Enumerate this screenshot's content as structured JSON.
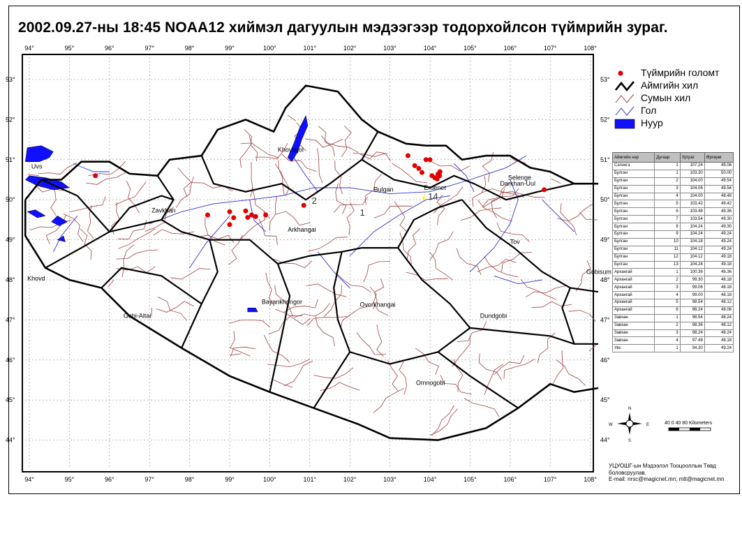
{
  "title": "2002.09.27-ны 18:45   NOAA12 хиймэл дагуулын мэдээгээр тодорхойлсон түймрийн зураг.",
  "lon_ticks": [
    "94°",
    "95°",
    "96°",
    "97°",
    "98°",
    "99°",
    "100°",
    "101°",
    "102°",
    "103°",
    "104°",
    "105°",
    "106°",
    "107°",
    "108°"
  ],
  "lat_ticks": [
    "53°",
    "52°",
    "51°",
    "50°",
    "49°",
    "48°",
    "47°",
    "46°",
    "45°",
    "44°"
  ],
  "cities": [
    {
      "name": "Uvs",
      "lon": 94.05,
      "lat": 50.78
    },
    {
      "name": "Khovsgol",
      "lon": 100.2,
      "lat": 51.2
    },
    {
      "name": "Zavkhan",
      "lon": 97.05,
      "lat": 49.68
    },
    {
      "name": "Bulgan",
      "lon": 102.6,
      "lat": 50.2
    },
    {
      "name": "Erdenet",
      "lon": 103.85,
      "lat": 50.25
    },
    {
      "name": "Selenge",
      "lon": 105.95,
      "lat": 50.5
    },
    {
      "name": "Darkhan-Uul",
      "lon": 105.75,
      "lat": 50.35
    },
    {
      "name": "Arkhangai",
      "lon": 100.45,
      "lat": 49.2
    },
    {
      "name": "Tov",
      "lon": 106.0,
      "lat": 48.9
    },
    {
      "name": "Khovd",
      "lon": 93.95,
      "lat": 47.98
    },
    {
      "name": "Bayankhongor",
      "lon": 99.8,
      "lat": 47.4
    },
    {
      "name": "Ovorkhangai",
      "lon": 102.25,
      "lat": 47.33
    },
    {
      "name": "Gobi-Altai",
      "lon": 96.35,
      "lat": 47.05
    },
    {
      "name": "Dundgobi",
      "lon": 105.25,
      "lat": 47.05
    },
    {
      "name": "Gobisum",
      "lon": 107.9,
      "lat": 48.15
    },
    {
      "name": "Omnogobi",
      "lon": 103.65,
      "lat": 45.38
    }
  ],
  "fires": [
    {
      "lon": 95.65,
      "lat": 50.6
    },
    {
      "lon": 98.45,
      "lat": 49.62
    },
    {
      "lon": 99.0,
      "lat": 49.7
    },
    {
      "lon": 99.1,
      "lat": 49.55
    },
    {
      "lon": 99.4,
      "lat": 49.72
    },
    {
      "lon": 99.45,
      "lat": 49.56
    },
    {
      "lon": 99.55,
      "lat": 49.62
    },
    {
      "lon": 99.65,
      "lat": 49.58
    },
    {
      "lon": 99.9,
      "lat": 49.62
    },
    {
      "lon": 99.0,
      "lat": 49.38
    },
    {
      "lon": 100.85,
      "lat": 49.86
    },
    {
      "lon": 103.45,
      "lat": 51.1
    },
    {
      "lon": 103.62,
      "lat": 50.85
    },
    {
      "lon": 103.72,
      "lat": 50.78
    },
    {
      "lon": 103.8,
      "lat": 50.68
    },
    {
      "lon": 103.9,
      "lat": 51.0
    },
    {
      "lon": 104.0,
      "lat": 51.0
    },
    {
      "lon": 104.05,
      "lat": 50.6
    },
    {
      "lon": 104.12,
      "lat": 50.55
    },
    {
      "lon": 104.2,
      "lat": 50.64
    },
    {
      "lon": 104.25,
      "lat": 50.7
    },
    {
      "lon": 104.18,
      "lat": 50.52
    },
    {
      "lon": 104.24,
      "lat": 50.6
    },
    {
      "lon": 106.85,
      "lat": 50.25
    }
  ],
  "map_numbers": [
    {
      "label": "2",
      "lon": 101.05,
      "lat": 49.9
    },
    {
      "label": "1",
      "lon": 102.25,
      "lat": 49.6
    },
    {
      "label": "14",
      "lon": 103.95,
      "lat": 50.0
    }
  ],
  "legend": [
    {
      "icon": "fire-dot-icon",
      "label": "Түймрийн голомт",
      "color": "#e00000"
    },
    {
      "icon": "aimag-border-icon",
      "label": "Аймгийн хил",
      "color": "#000000"
    },
    {
      "icon": "sum-border-icon",
      "label": "Сумын хил",
      "color": "#a04040"
    },
    {
      "icon": "river-icon",
      "label": "Гол",
      "color": "#3030d0"
    },
    {
      "icon": "lake-icon",
      "label": "Нуур",
      "color": "#1010ff"
    }
  ],
  "table": {
    "headers": [
      "Аймгийн нэр",
      "Дугаар",
      "Уртраг",
      "Өргөрөг"
    ],
    "rows": [
      [
        "Сэлэнгэ",
        "1",
        "107.24",
        "49.06"
      ],
      [
        "Булган",
        "1",
        "103.30",
        "50.00"
      ],
      [
        "Булган",
        "2",
        "104.00",
        "49.54"
      ],
      [
        "Булган",
        "3",
        "104.06",
        "49.54"
      ],
      [
        "Булган",
        "4",
        "104.00",
        "48.48"
      ],
      [
        "Булган",
        "5",
        "103.42",
        "49.42"
      ],
      [
        "Булган",
        "6",
        "103.48",
        "49.36"
      ],
      [
        "Булган",
        "7",
        "103.54",
        "49.30"
      ],
      [
        "Булган",
        "8",
        "104.24",
        "49.30"
      ],
      [
        "Булган",
        "9",
        "104.24",
        "49.24"
      ],
      [
        "Булган",
        "10",
        "104.18",
        "49.24"
      ],
      [
        "Булган",
        "11",
        "104.12",
        "49.24"
      ],
      [
        "Булган",
        "12",
        "104.12",
        "49.18"
      ],
      [
        "Булган",
        "13",
        "104.24",
        "49.18"
      ],
      [
        "Архангай",
        "1",
        "100.36",
        "48.36"
      ],
      [
        "Архангай",
        "2",
        "99.30",
        "48.18"
      ],
      [
        "Архангай",
        "3",
        "99.06",
        "48.18"
      ],
      [
        "Архангай",
        "4",
        "99.00",
        "48.18"
      ],
      [
        "Архангай",
        "5",
        "98.54",
        "48.12"
      ],
      [
        "Архангай",
        "6",
        "98.24",
        "48.06"
      ],
      [
        "Завхан",
        "1",
        "98.54",
        "48.24"
      ],
      [
        "Завхан",
        "2",
        "98.36",
        "48.12"
      ],
      [
        "Завхан",
        "3",
        "98.24",
        "48.24"
      ],
      [
        "Завхан",
        "4",
        "97.48",
        "48.18"
      ],
      [
        "Увс",
        "1",
        "94.30",
        "49.24"
      ]
    ]
  },
  "compass": {
    "n": "N",
    "s": "S",
    "e": "E",
    "w": "W"
  },
  "scale": "40   0   40   80  Kilometers",
  "credit": [
    "УЦУОШГ-ын Мэдээлэл Тооцооллын Төвд",
    "боловсруулав.",
    "E-mail: nrsc@magicnet.mn;   mtt@magicnet.mn"
  ],
  "colors": {
    "fire": "#e00000",
    "aimag_border": "#000000",
    "sum_border": "#a04040",
    "river": "#3030d0",
    "lake": "#1010ff"
  }
}
